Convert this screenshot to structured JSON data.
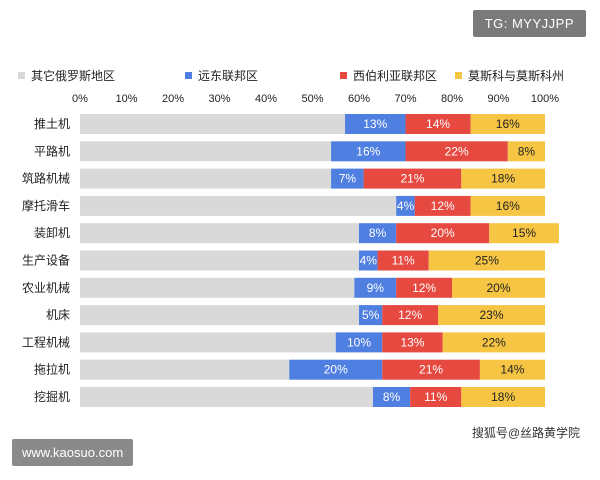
{
  "watermarks": {
    "tg": "TG: MYYJJPP",
    "site": "www.kaosuo.com",
    "sohu": "搜狐号@丝路黄学院"
  },
  "chart_data": {
    "type": "bar",
    "orientation": "horizontal",
    "stacked": true,
    "percent_axis": true,
    "title": "",
    "xlabel": "",
    "ylabel": "",
    "xlim": [
      0,
      100
    ],
    "x_ticks": [
      "0%",
      "10%",
      "20%",
      "30%",
      "40%",
      "50%",
      "60%",
      "70%",
      "80%",
      "90%",
      "100%"
    ],
    "legend_position": "top",
    "categories": [
      "推土机",
      "平路机",
      "筑路机械",
      "摩托滑车",
      "装卸机",
      "生产设备",
      "农业机械",
      "机床",
      "工程机械",
      "拖拉机",
      "挖掘机"
    ],
    "series": [
      {
        "name": "其它俄罗斯地区",
        "color": "#d9d9d9",
        "values": [
          57,
          54,
          54,
          68,
          60,
          60,
          59,
          60,
          55,
          45,
          63
        ],
        "labels": [
          "",
          "",
          "",
          "",
          "",
          "",
          "",
          "",
          "",
          "",
          ""
        ]
      },
      {
        "name": "远东联邦区",
        "color": "#4f7fe0",
        "values": [
          13,
          16,
          7,
          4,
          8,
          4,
          9,
          5,
          10,
          20,
          8
        ],
        "labels": [
          "13%",
          "16%",
          "7%",
          "4%",
          "8%",
          "4%",
          "9%",
          "5%",
          "10%",
          "20%",
          "8%"
        ]
      },
      {
        "name": "西伯利亚联邦区",
        "color": "#e5493f",
        "values": [
          14,
          22,
          21,
          12,
          20,
          11,
          12,
          12,
          13,
          21,
          11
        ],
        "labels": [
          "14%",
          "22%",
          "21%",
          "12%",
          "20%",
          "11%",
          "12%",
          "12%",
          "13%",
          "21%",
          "11%"
        ]
      },
      {
        "name": "莫斯科与莫斯科州",
        "color": "#f6c544",
        "values": [
          16,
          8,
          18,
          16,
          15,
          25,
          20,
          23,
          22,
          14,
          18
        ],
        "labels": [
          "16%",
          "8%",
          "18%",
          "16%",
          "15%",
          "25%",
          "20%",
          "23%",
          "22%",
          "14%",
          "18%"
        ]
      }
    ]
  }
}
